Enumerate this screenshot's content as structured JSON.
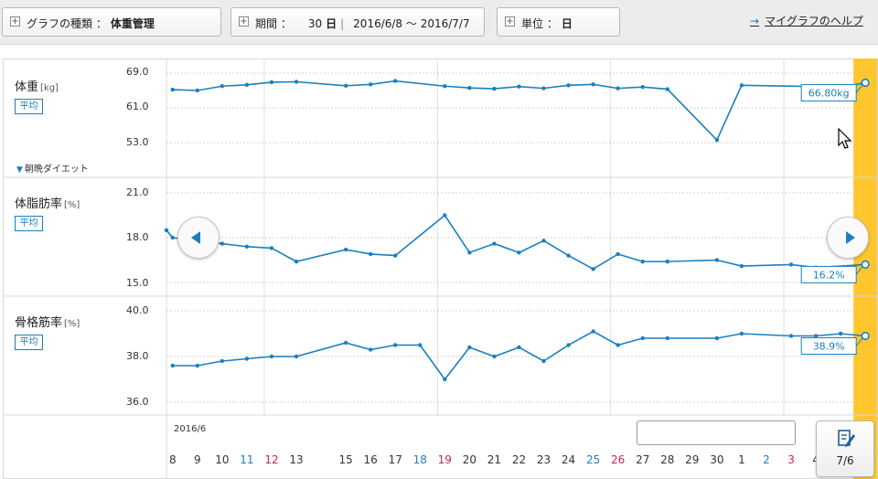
{
  "header": {
    "graph_type_label": "グラフの種類 ：",
    "graph_type_value": "体重管理",
    "period_label": "期間 ：",
    "period_days": "30",
    "period_day_unit": "日",
    "period_range": "2016/6/8 ～ 2016/7/7",
    "unit_label": "単位 ：",
    "unit_value": "日",
    "help_link": "マイグラフのヘルプ"
  },
  "panels": [
    {
      "title": "体重",
      "unit": "[kg]",
      "badge": "平均",
      "ylim": [
        53,
        69
      ],
      "ticks": [
        "69.0",
        "61.0",
        "53.0"
      ],
      "values": [
        65.2,
        65.0,
        66.0,
        66.3,
        66.9,
        67.0,
        66.1,
        66.4,
        67.2,
        66.0,
        65.6,
        65.4,
        65.9,
        65.5,
        66.2,
        66.4,
        65.5,
        65.8,
        65.3,
        53.6,
        66.2,
        65.9,
        65.7,
        66.8
      ],
      "callout": "66.80kg",
      "sub_link": "朝晩ダイエット"
    },
    {
      "title": "体脂肪率",
      "unit": "[%]",
      "badge": "平均",
      "ylim": [
        15,
        21
      ],
      "ticks": [
        "21.0",
        "18.0",
        "15.0"
      ],
      "values": [
        18.5,
        18.0,
        17.6,
        17.4,
        17.3,
        16.4,
        17.2,
        16.9,
        16.8,
        19.5,
        17.0,
        17.6,
        17.0,
        17.8,
        16.8,
        15.9,
        16.9,
        16.4,
        16.4,
        16.5,
        16.1,
        16.2,
        16.0,
        16.2
      ],
      "callout": "16.2%"
    },
    {
      "title": "骨格筋率",
      "unit": "[%]",
      "badge": "平均",
      "ylim": [
        36,
        40
      ],
      "ticks": [
        "40.0",
        "38.0",
        "36.0"
      ],
      "values": [
        37.6,
        37.6,
        37.8,
        37.9,
        38.0,
        38.0,
        38.6,
        38.3,
        38.5,
        38.5,
        37.0,
        38.4,
        38.0,
        38.4,
        37.8,
        38.5,
        39.1,
        38.5,
        38.8,
        38.8,
        38.8,
        39.0,
        38.9,
        38.9,
        39.0,
        38.9
      ],
      "callout": "38.9%"
    }
  ],
  "xaxis": {
    "month": "2016/6",
    "dates": [
      "8",
      "9",
      "10",
      "11",
      "12",
      "13",
      "15",
      "16",
      "17",
      "18",
      "19",
      "20",
      "21",
      "22",
      "23",
      "24",
      "25",
      "26",
      "27",
      "28",
      "29",
      "30",
      "1",
      "2",
      "3",
      "4"
    ],
    "selected_date": "7/6"
  },
  "series_x": {
    "weight": [
      "8",
      "9",
      "10",
      "11",
      "12",
      "13",
      "15",
      "16",
      "17",
      "19",
      "20",
      "21",
      "22",
      "23",
      "24",
      "25",
      "26",
      "27",
      "28",
      "30",
      "1",
      "4",
      "5",
      "6"
    ],
    "fat": [
      "7",
      "8",
      "10",
      "11",
      "12",
      "13",
      "15",
      "16",
      "17",
      "19",
      "20",
      "21",
      "22",
      "23",
      "24",
      "25",
      "26",
      "27",
      "28",
      "30",
      "1",
      "3",
      "4",
      "6"
    ],
    "muscle": [
      "8",
      "9",
      "10",
      "11",
      "12",
      "13",
      "15",
      "16",
      "17",
      "18",
      "19",
      "20",
      "21",
      "22",
      "23",
      "24",
      "25",
      "26",
      "27",
      "28",
      "30",
      "1",
      "3",
      "4",
      "5",
      "6"
    ]
  },
  "colors": {
    "line": "#1a7fc1",
    "highlight": "#ffc62e",
    "weekday_sat": "#1a7fc1",
    "weekday_sun": "#cc2255"
  },
  "weekend": {
    "sat": [
      "11",
      "18",
      "25",
      "2"
    ],
    "sun": [
      "12",
      "19",
      "26",
      "3"
    ]
  }
}
